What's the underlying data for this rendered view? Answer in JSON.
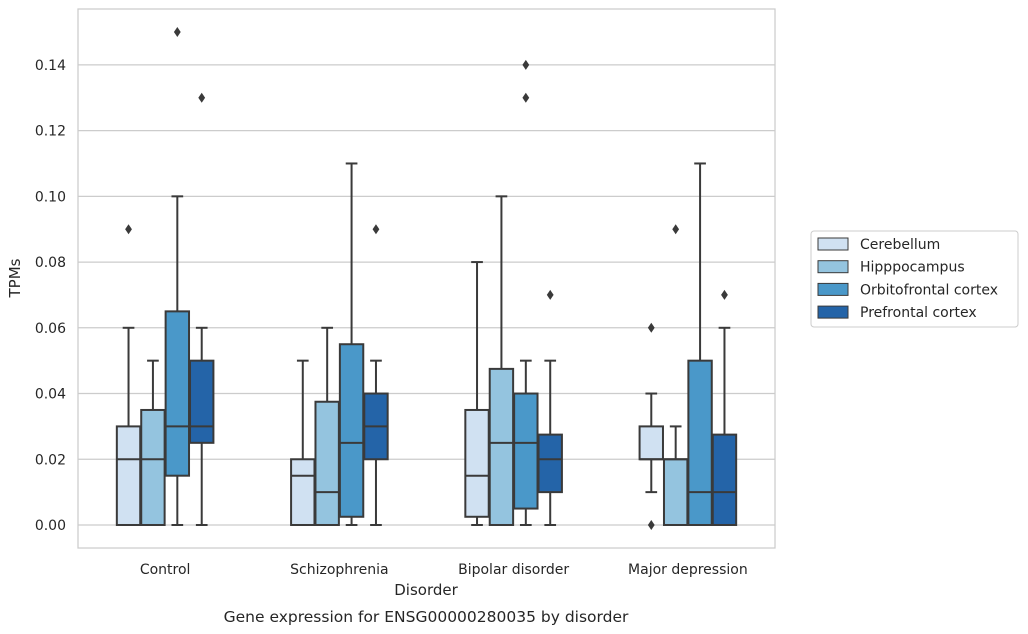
{
  "chart_data": {
    "type": "box",
    "caption": "Gene expression for ENSG00000280035 by disorder",
    "xlabel": "Disorder",
    "ylabel": "TPMs",
    "ylim": [
      -0.007,
      0.157
    ],
    "yticks": [
      "0.00",
      "0.02",
      "0.04",
      "0.06",
      "0.08",
      "0.10",
      "0.12",
      "0.14"
    ],
    "grid": true,
    "legend_position": "right",
    "categories": [
      "Control",
      "Schizophrenia",
      "Bipolar disorder",
      "Major depression"
    ],
    "series": [
      {
        "name": "Cerebellum",
        "color": "#d0e1f2",
        "boxes": [
          {
            "low": 0.0,
            "q1": 0.0,
            "median": 0.02,
            "q3": 0.03,
            "high": 0.06,
            "outliers": [
              0.09
            ]
          },
          {
            "low": 0.0,
            "q1": 0.0,
            "median": 0.015,
            "q3": 0.02,
            "high": 0.05,
            "outliers": []
          },
          {
            "low": 0.0,
            "q1": 0.0025,
            "median": 0.015,
            "q3": 0.035,
            "high": 0.08,
            "outliers": []
          },
          {
            "low": 0.01,
            "q1": 0.02,
            "median": 0.02,
            "q3": 0.03,
            "high": 0.04,
            "outliers": [
              0.06,
              0.0
            ]
          }
        ]
      },
      {
        "name": "Hipppocampus",
        "color": "#94c4df",
        "boxes": [
          {
            "low": 0.0,
            "q1": 0.0,
            "median": 0.02,
            "q3": 0.035,
            "high": 0.05,
            "outliers": []
          },
          {
            "low": 0.0,
            "q1": 0.0,
            "median": 0.01,
            "q3": 0.0375,
            "high": 0.06,
            "outliers": []
          },
          {
            "low": 0.0,
            "q1": 0.0,
            "median": 0.025,
            "q3": 0.0475,
            "high": 0.1,
            "outliers": []
          },
          {
            "low": 0.0,
            "q1": 0.0,
            "median": 0.02,
            "q3": 0.02,
            "high": 0.03,
            "outliers": [
              0.09
            ]
          }
        ]
      },
      {
        "name": "Orbitofrontal cortex",
        "color": "#4a98c9",
        "boxes": [
          {
            "low": 0.0,
            "q1": 0.015,
            "median": 0.03,
            "q3": 0.065,
            "high": 0.1,
            "outliers": [
              0.15
            ]
          },
          {
            "low": 0.0,
            "q1": 0.0025,
            "median": 0.025,
            "q3": 0.055,
            "high": 0.11,
            "outliers": []
          },
          {
            "low": 0.0,
            "q1": 0.005,
            "median": 0.025,
            "q3": 0.04,
            "high": 0.05,
            "outliers": [
              0.14,
              0.13
            ]
          },
          {
            "low": 0.0,
            "q1": 0.0,
            "median": 0.01,
            "q3": 0.05,
            "high": 0.11,
            "outliers": []
          }
        ]
      },
      {
        "name": "Prefrontal cortex",
        "color": "#2464a8",
        "boxes": [
          {
            "low": 0.0,
            "q1": 0.025,
            "median": 0.03,
            "q3": 0.05,
            "high": 0.06,
            "outliers": [
              0.13
            ]
          },
          {
            "low": 0.0,
            "q1": 0.02,
            "median": 0.03,
            "q3": 0.04,
            "high": 0.05,
            "outliers": [
              0.09
            ]
          },
          {
            "low": 0.0,
            "q1": 0.01,
            "median": 0.02,
            "q3": 0.0275,
            "high": 0.05,
            "outliers": [
              0.07
            ]
          },
          {
            "low": 0.0,
            "q1": 0.0,
            "median": 0.01,
            "q3": 0.0275,
            "high": 0.06,
            "outliers": [
              0.07
            ]
          }
        ]
      }
    ]
  }
}
